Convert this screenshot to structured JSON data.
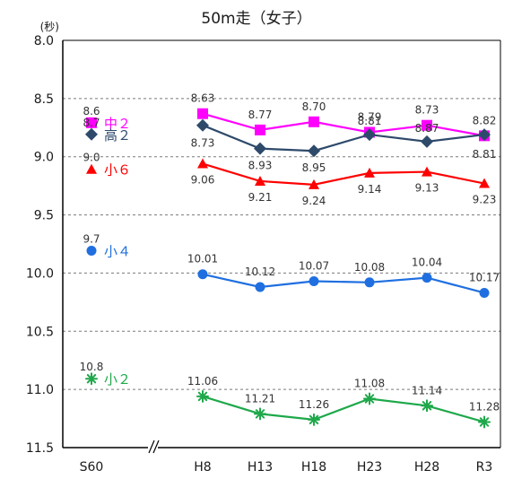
{
  "chart_data": {
    "type": "line",
    "title": "50m走（女子）",
    "ylabel": "(秒)",
    "ylim": [
      8.0,
      11.5
    ],
    "y_inverted": true,
    "y_ticks": [
      "8.0",
      "8.5",
      "9.0",
      "9.5",
      "10.0",
      "10.5",
      "11.0",
      "11.5"
    ],
    "grid": "horizontal dashed",
    "axis_break": "//",
    "baseline": {
      "category": "S60",
      "points": [
        {
          "series": "中２",
          "value": 8.6,
          "label": "8.6"
        },
        {
          "series": "高２",
          "value": 8.7,
          "label": "8.7"
        },
        {
          "series": "小６",
          "value": 9.0,
          "label": "9.0"
        },
        {
          "series": "小４",
          "value": 9.7,
          "label": "9.7"
        },
        {
          "series": "小２",
          "value": 10.8,
          "label": "10.8"
        }
      ]
    },
    "categories": [
      "H8",
      "H13",
      "H18",
      "H23",
      "H28",
      "R3"
    ],
    "series": [
      {
        "name": "中２",
        "color": "#ff00ff",
        "marker": "square",
        "values": [
          8.63,
          8.77,
          8.7,
          8.79,
          8.73,
          8.82
        ],
        "labels": [
          "8.63",
          "8.77",
          "8.70",
          "8.79",
          "8.73",
          "8.82"
        ]
      },
      {
        "name": "高２",
        "color": "#2e4a6b",
        "marker": "diamond",
        "values": [
          8.73,
          8.93,
          8.95,
          8.81,
          8.87,
          8.81
        ],
        "labels": [
          "8.73",
          "8.93",
          "8.95",
          "8.81",
          "8.87",
          "8.81"
        ]
      },
      {
        "name": "小６",
        "color": "#ff0000",
        "marker": "triangle",
        "values": [
          9.06,
          9.21,
          9.24,
          9.14,
          9.13,
          9.23
        ],
        "labels": [
          "9.06",
          "9.21",
          "9.24",
          "9.14",
          "9.13",
          "9.23"
        ]
      },
      {
        "name": "小４",
        "color": "#1f6fe0",
        "marker": "circle",
        "values": [
          10.01,
          10.12,
          10.07,
          10.08,
          10.04,
          10.17
        ],
        "labels": [
          "10.01",
          "10.12",
          "10.07",
          "10.08",
          "10.04",
          "10.17"
        ]
      },
      {
        "name": "小２",
        "color": "#1ea84a",
        "marker": "asterisk",
        "values": [
          11.06,
          11.21,
          11.26,
          11.08,
          11.14,
          11.28
        ],
        "labels": [
          "11.06",
          "11.21",
          "11.26",
          "11.08",
          "11.14",
          "11.28"
        ]
      }
    ],
    "legend": [
      {
        "name": "中２",
        "color": "#ff00ff",
        "marker": "square",
        "label_color": "#ff00ff"
      },
      {
        "name": "高２",
        "color": "#2e4a6b",
        "marker": "diamond",
        "label_color": "#2e4a6b"
      },
      {
        "name": "小６",
        "color": "#ff0000",
        "marker": "triangle",
        "label_color": "#ff0000"
      },
      {
        "name": "小４",
        "color": "#1f6fe0",
        "marker": "circle",
        "label_color": "#1f6fe0"
      },
      {
        "name": "小２",
        "color": "#1ea84a",
        "marker": "asterisk",
        "label_color": "#1ea84a"
      }
    ]
  }
}
